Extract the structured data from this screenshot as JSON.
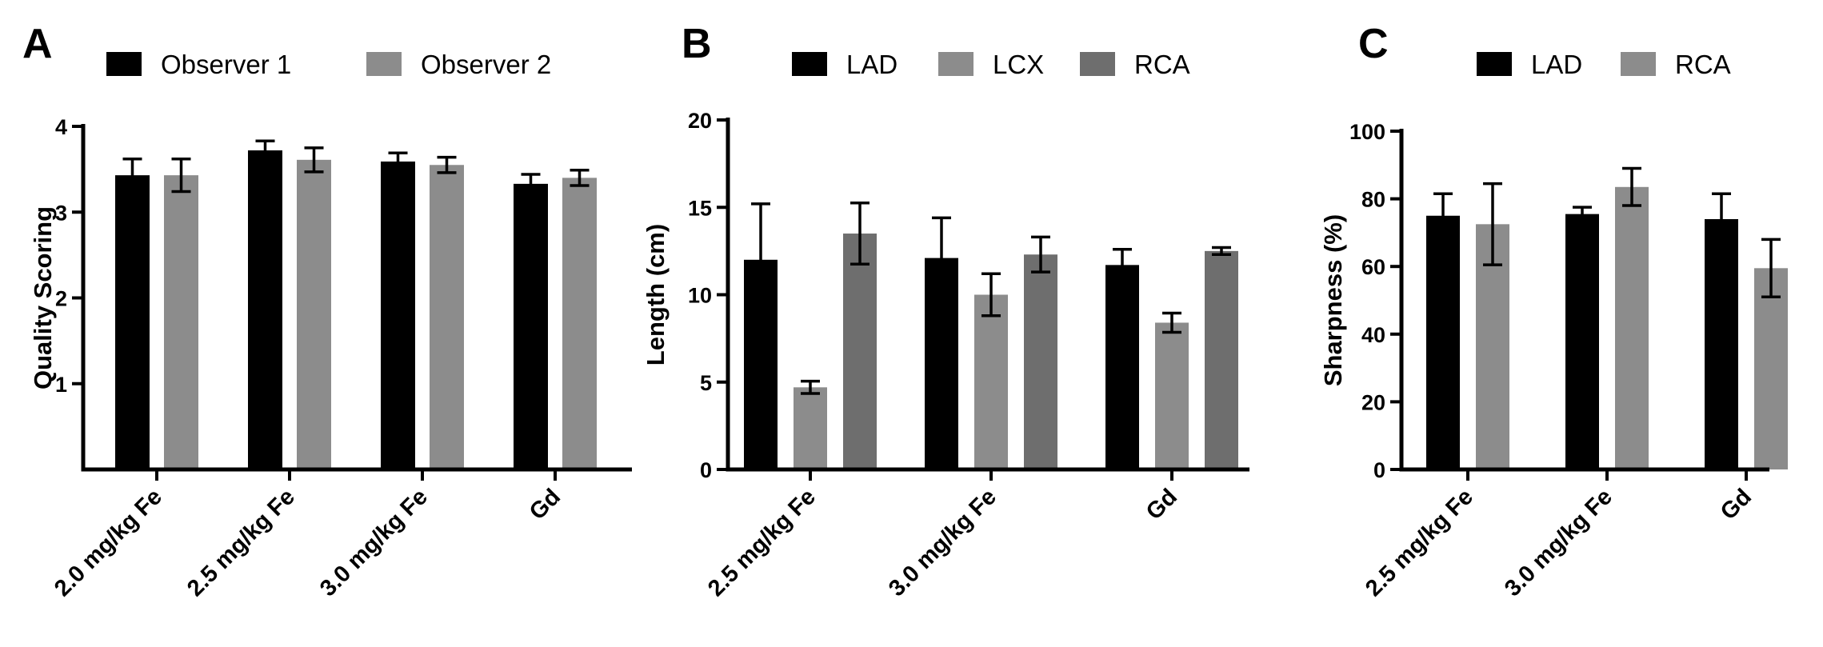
{
  "chart_data": [
    {
      "panel": "A",
      "type": "bar",
      "title": "",
      "xlabel": "",
      "ylabel": "Quality Scoring",
      "ylim": [
        0,
        4
      ],
      "yticks": [
        1,
        2,
        3,
        4
      ],
      "categories": [
        "2.0 mg/kg Fe",
        "2.5 mg/kg Fe",
        "3.0 mg/kg Fe",
        "Gd"
      ],
      "series": [
        {
          "name": "Observer 1",
          "color": "#000000",
          "values": [
            3.43,
            3.72,
            3.59,
            3.33
          ],
          "errors": [
            0.19,
            0.11,
            0.1,
            0.11
          ]
        },
        {
          "name": "Observer 2",
          "color": "#8c8c8c",
          "values": [
            3.43,
            3.61,
            3.55,
            3.4
          ],
          "errors": [
            0.19,
            0.14,
            0.09,
            0.09
          ]
        }
      ],
      "legend": "top"
    },
    {
      "panel": "B",
      "type": "bar",
      "title": "",
      "xlabel": "",
      "ylabel": "Length (cm)",
      "ylim": [
        0,
        20
      ],
      "yticks": [
        0,
        5,
        10,
        15,
        20
      ],
      "categories": [
        "2.5 mg/kg Fe",
        "3.0 mg/kg Fe",
        "Gd"
      ],
      "series": [
        {
          "name": "LAD",
          "color": "#000000",
          "values": [
            12.0,
            12.1,
            11.7
          ],
          "errors": [
            3.2,
            2.3,
            0.9
          ]
        },
        {
          "name": "LCX",
          "color": "#8c8c8c",
          "values": [
            4.7,
            10.0,
            8.4
          ],
          "errors": [
            0.35,
            1.2,
            0.55
          ]
        },
        {
          "name": "RCA",
          "color": "#6e6e6e",
          "values": [
            13.5,
            12.3,
            12.5
          ],
          "errors": [
            1.75,
            1.0,
            0.2
          ]
        }
      ],
      "legend": "top"
    },
    {
      "panel": "C",
      "type": "bar",
      "title": "",
      "xlabel": "",
      "ylabel": "Sharpness (%)",
      "ylim": [
        0,
        100
      ],
      "yticks": [
        0,
        20,
        40,
        60,
        80,
        100
      ],
      "categories": [
        "2.5 mg/kg Fe",
        "3.0 mg/kg Fe",
        "Gd"
      ],
      "series": [
        {
          "name": "LAD",
          "color": "#000000",
          "values": [
            75.0,
            75.5,
            74.0
          ],
          "errors": [
            6.5,
            2.0,
            7.5
          ]
        },
        {
          "name": "RCA",
          "color": "#8c8c8c",
          "values": [
            72.5,
            83.5,
            59.5
          ],
          "errors": [
            12.0,
            5.5,
            8.5
          ]
        }
      ],
      "legend": "top"
    }
  ]
}
